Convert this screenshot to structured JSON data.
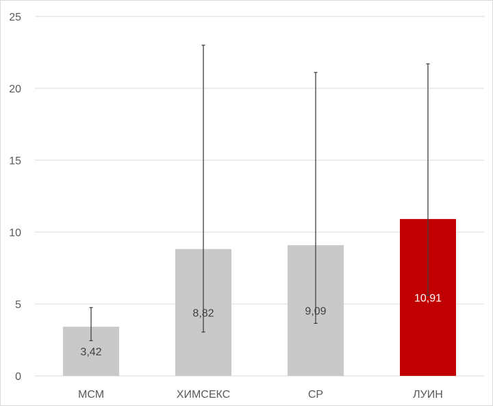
{
  "chart_data": {
    "type": "bar",
    "title": "",
    "xlabel": "",
    "ylabel": "",
    "ylim": [
      0,
      25
    ],
    "yticks": [
      0,
      5,
      10,
      15,
      20,
      25
    ],
    "grid": true,
    "categories": [
      "МСМ",
      "ХИМСЕКС",
      "СР",
      "ЛУИН"
    ],
    "values": [
      3.42,
      8.82,
      9.09,
      10.91
    ],
    "data_labels": [
      "3,42",
      "8,82",
      "9,09",
      "10,91"
    ],
    "error_low": [
      2.45,
      3.05,
      3.65,
      5.6
    ],
    "error_high": [
      4.75,
      23.0,
      21.1,
      21.7
    ],
    "colors": [
      "#c9c9c9",
      "#c9c9c9",
      "#c9c9c9",
      "#c00000"
    ],
    "label_colors": [
      "#404040",
      "#404040",
      "#404040",
      "#ffffff"
    ],
    "gridline_color": "#d9d9d9",
    "error_bar_color": "#404040"
  }
}
